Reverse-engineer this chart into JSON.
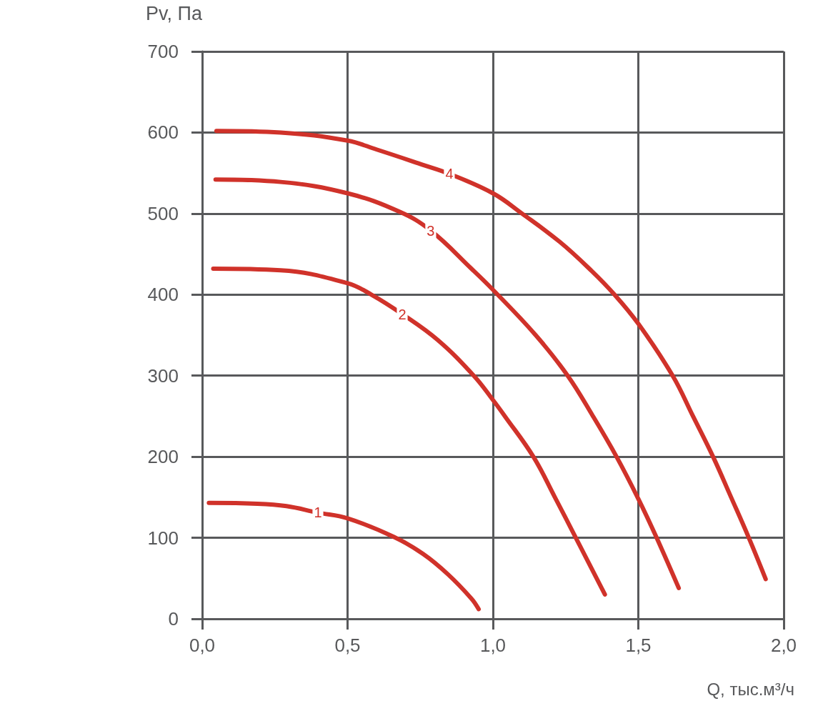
{
  "chart_data": {
    "type": "line",
    "xlabel": "Q, тыс.м³/ч",
    "ylabel": "Pv, Па",
    "xlim": [
      0,
      2
    ],
    "xticks": [
      {
        "value": 0,
        "label": "0,0"
      },
      {
        "value": 0.5,
        "label": "0,5"
      },
      {
        "value": 1,
        "label": "1,0"
      },
      {
        "value": 1.5,
        "label": "1,5"
      },
      {
        "value": 2,
        "label": "2,0"
      }
    ],
    "ylim": [
      0,
      700
    ],
    "yticks": [
      0,
      100,
      200,
      300,
      400,
      500,
      600,
      700
    ],
    "grid": true,
    "marker": "none",
    "line_style": "solid",
    "series": [
      {
        "name": "1",
        "color": "#d0322a",
        "x": [
          0.023,
          0.19,
          0.29,
          0.398,
          0.5,
          0.66,
          0.76,
          0.845,
          0.926,
          0.951
        ],
        "values": [
          143,
          142,
          139,
          131,
          124,
          101,
          80,
          55,
          25,
          12
        ]
      },
      {
        "name": "2",
        "color": "#d0322a",
        "x": [
          0.038,
          0.27,
          0.5,
          0.582,
          0.688,
          0.81,
          0.934,
          1.0,
          1.041,
          1.139,
          1.213,
          1.285,
          1.385
        ],
        "values": [
          432,
          430,
          414,
          400,
          376,
          344,
          300,
          270,
          250,
          200,
          150,
          100,
          30
        ]
      },
      {
        "name": "3",
        "color": "#d0322a",
        "x": [
          0.046,
          0.27,
          0.5,
          0.68,
          0.786,
          0.926,
          1.0,
          1.147,
          1.257,
          1.344,
          1.425,
          1.5,
          1.563,
          1.639
        ],
        "values": [
          542,
          539,
          525,
          502,
          479,
          432,
          406,
          350,
          300,
          250,
          200,
          148,
          100,
          38
        ]
      },
      {
        "name": "4",
        "color": "#d0322a",
        "x": [
          0.049,
          0.27,
          0.5,
          0.6,
          0.76,
          0.85,
          1.0,
          1.1,
          1.23,
          1.34,
          1.418,
          1.5,
          1.618,
          1.688,
          1.757,
          1.819,
          1.88,
          1.938
        ],
        "values": [
          602,
          600,
          590,
          579,
          560,
          549,
          525,
          500,
          465,
          429,
          400,
          364,
          300,
          250,
          200,
          150,
          100,
          49
        ]
      }
    ]
  }
}
